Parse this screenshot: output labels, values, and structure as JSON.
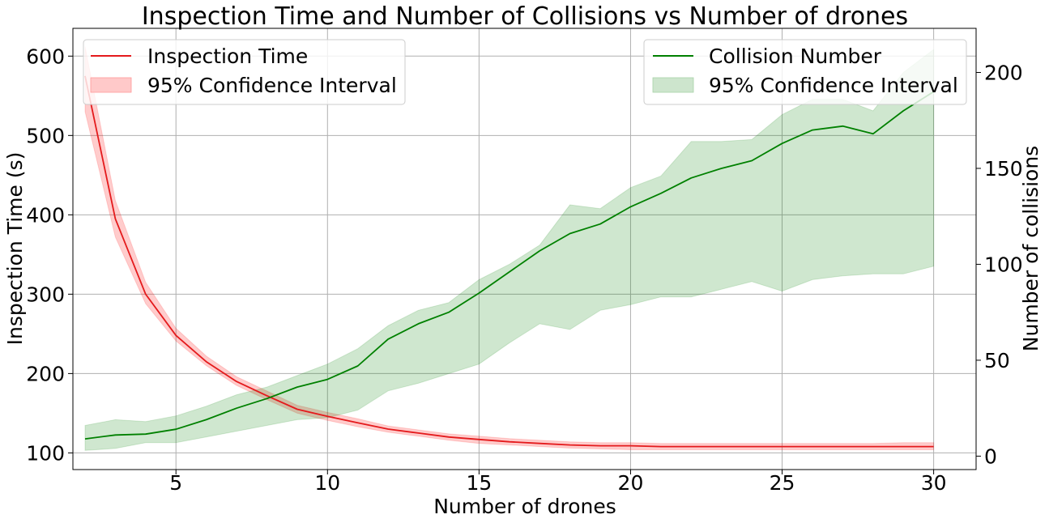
{
  "chart_data": {
    "type": "line",
    "title": "Inspection Time and Number of Collisions vs Number of drones",
    "xlabel": "Number of drones",
    "ylabel_left": "Inspection Time (s)",
    "ylabel_right": "Number of collisions",
    "xlim": [
      1.6,
      31.4
    ],
    "ylim_left": [
      79,
      635
    ],
    "ylim_right": [
      -7,
      223
    ],
    "xticks": [
      5,
      10,
      15,
      20,
      25,
      30
    ],
    "yticks_left": [
      100,
      200,
      300,
      400,
      500,
      600
    ],
    "yticks_right": [
      0,
      50,
      100,
      150,
      200
    ],
    "grid": true,
    "x": [
      2,
      3,
      4,
      5,
      6,
      7,
      8,
      9,
      10,
      11,
      12,
      13,
      14,
      15,
      16,
      17,
      18,
      19,
      20,
      21,
      22,
      23,
      24,
      25,
      26,
      27,
      28,
      29,
      30
    ],
    "series": [
      {
        "name": "Inspection Time",
        "axis": "left",
        "color": "#e41a1c",
        "values": [
          575,
          395,
          300,
          248,
          215,
          190,
          172,
          155,
          146,
          138,
          130,
          125,
          120,
          117,
          114,
          112,
          110,
          109,
          109,
          108,
          108,
          108,
          108,
          108,
          108,
          108,
          108,
          108,
          108
        ],
        "ci_low": [
          530,
          372,
          288,
          241,
          210,
          185,
          167,
          150,
          141,
          133,
          126,
          121,
          116,
          112,
          110,
          108,
          106,
          105,
          104,
          104,
          104,
          104,
          104,
          104,
          104,
          104,
          104,
          104,
          104
        ],
        "ci_high": [
          612,
          418,
          315,
          257,
          222,
          196,
          178,
          160,
          151,
          143,
          134,
          129,
          124,
          121,
          118,
          116,
          114,
          113,
          113,
          112,
          112,
          112,
          112,
          112,
          112,
          112,
          112,
          113,
          113
        ]
      },
      {
        "name": "Collision Number",
        "axis": "right",
        "color": "#008000",
        "values": [
          9,
          11,
          11.5,
          14,
          19,
          25,
          30,
          36,
          40,
          47,
          61,
          69,
          75,
          85,
          96,
          107,
          116,
          121,
          130,
          137,
          145,
          150,
          154,
          163,
          170,
          172,
          168,
          180,
          190
        ],
        "ci_low": [
          3,
          4,
          7,
          7,
          10,
          13,
          16,
          19,
          20,
          24,
          34,
          38,
          43,
          48,
          59,
          69,
          66,
          76,
          79,
          83,
          83,
          87,
          91,
          86,
          92,
          94,
          95,
          95,
          99
        ],
        "ci_high": [
          16,
          19,
          18,
          21,
          26,
          32,
          36,
          42,
          48,
          56,
          68,
          76,
          80,
          92,
          100,
          110,
          131,
          129,
          140,
          146,
          164,
          164,
          165,
          178,
          186,
          186,
          180,
          200,
          212
        ]
      }
    ],
    "legends": [
      {
        "placement": "top-left",
        "entries": [
          {
            "label": "Inspection Time",
            "kind": "line",
            "color": "#e41a1c"
          },
          {
            "label": "95% Confidence Interval",
            "kind": "band",
            "color": "#ffc9c9"
          }
        ]
      },
      {
        "placement": "top-right",
        "entries": [
          {
            "label": "Collision Number",
            "kind": "line",
            "color": "#008000"
          },
          {
            "label": "95% Confidence Interval",
            "kind": "band",
            "color": "#cde5cd"
          }
        ]
      }
    ]
  }
}
